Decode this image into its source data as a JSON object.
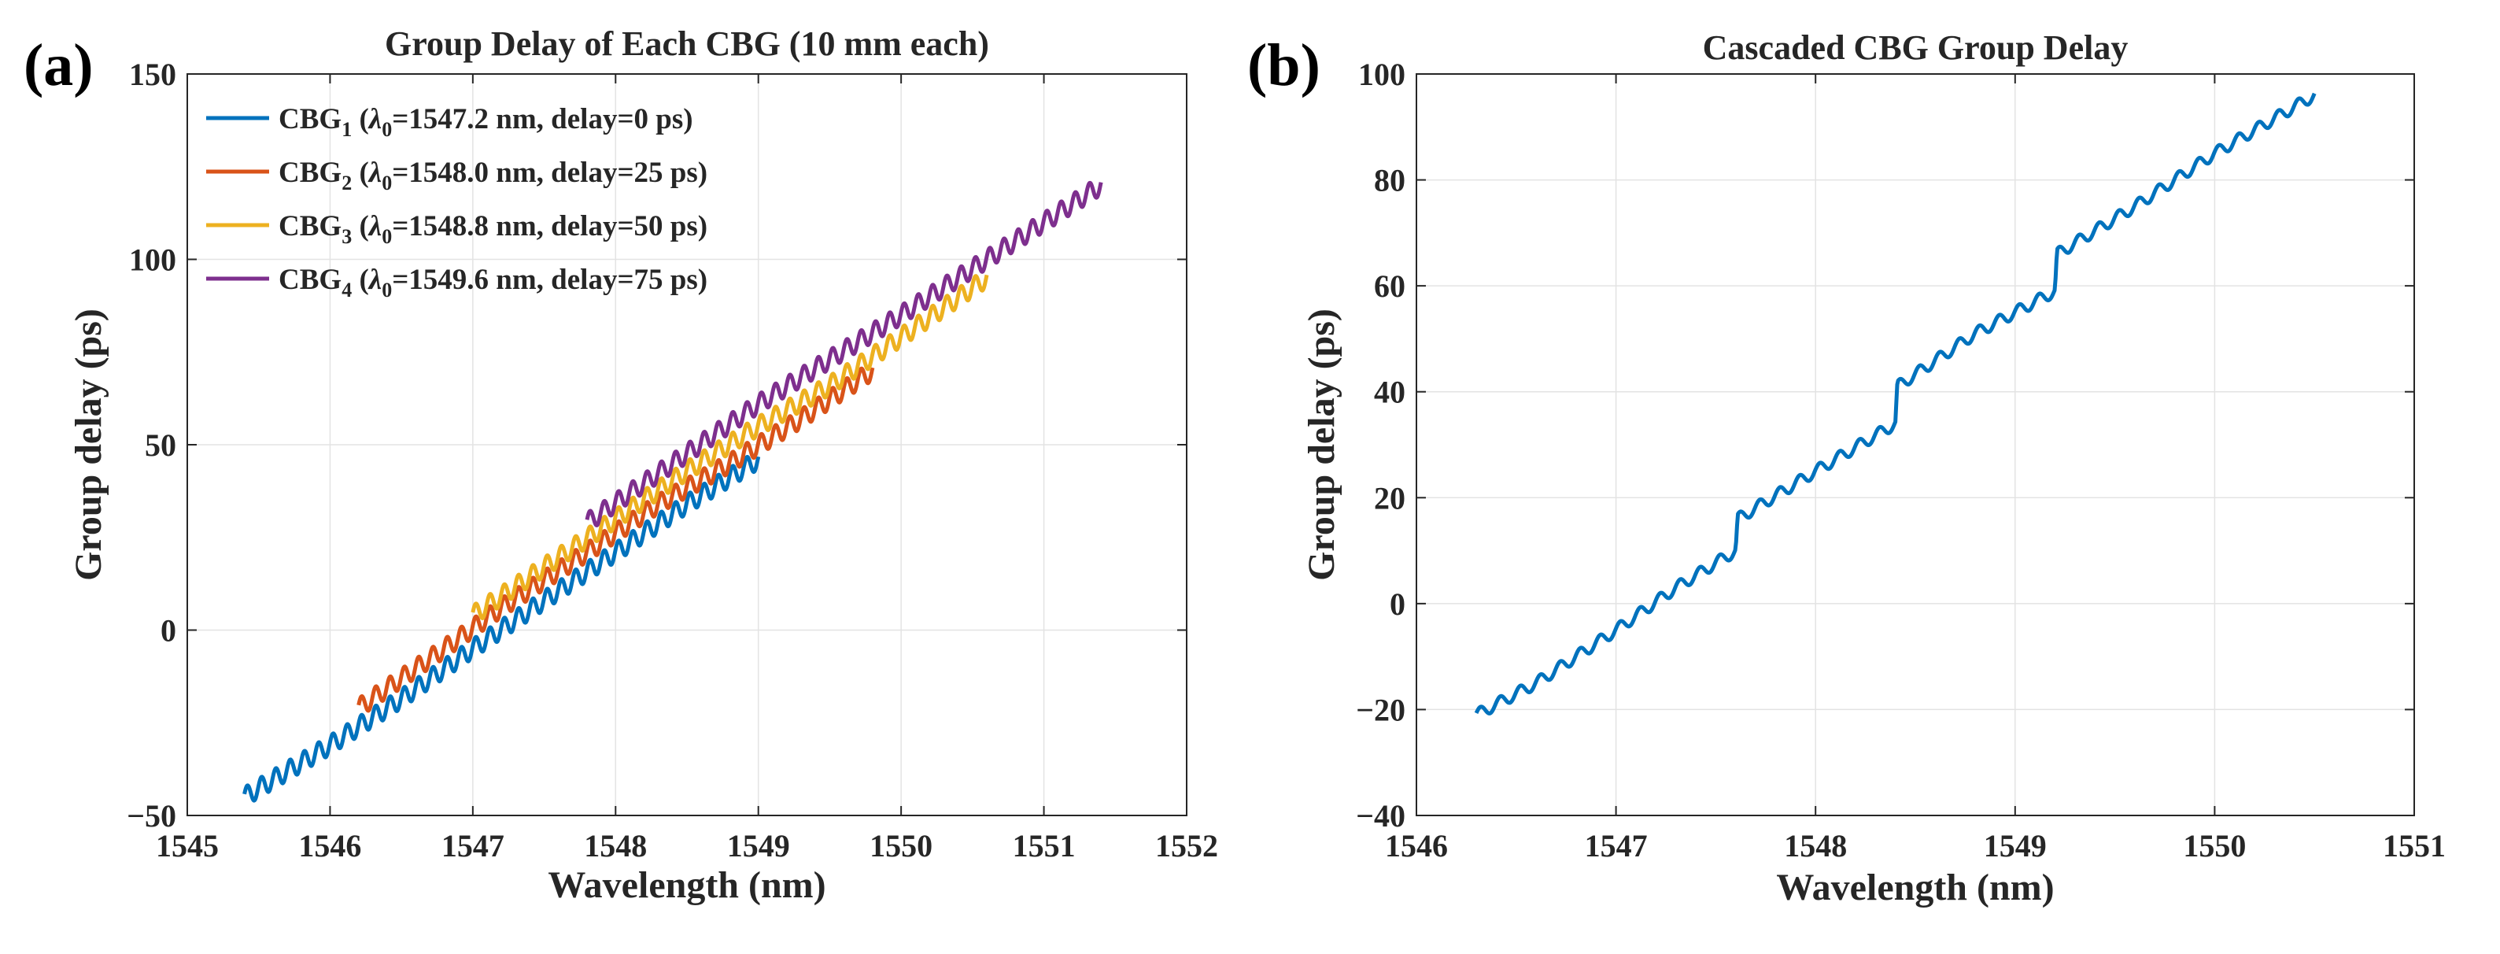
{
  "panels": [
    {
      "label": "(a)"
    },
    {
      "label": "(b)"
    }
  ],
  "chart_data": [
    {
      "type": "line",
      "title": "Group Delay of Each CBG (10 mm each)",
      "xlabel": "Wavelength (nm)",
      "ylabel": "Group delay (ps)",
      "xlim": [
        1545,
        1552
      ],
      "ylim": [
        -50,
        150
      ],
      "xticks": [
        1545,
        1546,
        1547,
        1548,
        1549,
        1550,
        1551,
        1552
      ],
      "yticks": [
        -50,
        0,
        50,
        100,
        150
      ],
      "grid": true,
      "legend_position": "top-left",
      "series": [
        {
          "name": "CBG1",
          "name_sub": "1",
          "lambda0": "1547.2",
          "delay": "0",
          "color": "#0072BD",
          "x": [
            1545.4,
            1546.0,
            1546.5,
            1547.0,
            1547.5,
            1548.0,
            1548.5,
            1549.0
          ],
          "y": [
            -45,
            -31,
            -18.5,
            -5,
            8,
            21,
            34,
            46
          ],
          "ripple_amp": 2.6,
          "ripple_period": 0.1
        },
        {
          "name": "CBG2",
          "name_sub": "2",
          "lambda0": "1548.0",
          "delay": "25",
          "color": "#D95319",
          "x": [
            1546.2,
            1546.8,
            1547.2,
            1547.8,
            1548.3,
            1548.8,
            1549.3,
            1549.8
          ],
          "y": [
            -21,
            -5,
            6,
            21,
            34,
            45,
            57,
            70
          ],
          "ripple_amp": 2.6,
          "ripple_period": 0.1
        },
        {
          "name": "CBG3",
          "name_sub": "3",
          "lambda0": "1548.8",
          "delay": "50",
          "color": "#EDB120",
          "x": [
            1547.0,
            1547.5,
            1548.0,
            1548.5,
            1549.0,
            1549.5,
            1550.0,
            1550.6
          ],
          "y": [
            4,
            17,
            30,
            43,
            55,
            66,
            79,
            95
          ],
          "ripple_amp": 2.6,
          "ripple_period": 0.1
        },
        {
          "name": "CBG4",
          "name_sub": "4",
          "lambda0": "1549.6",
          "delay": "75",
          "color": "#7E2F8E",
          "x": [
            1547.8,
            1548.4,
            1549.0,
            1549.5,
            1550.0,
            1550.6,
            1551.0,
            1551.4
          ],
          "y": [
            29,
            45,
            61,
            73,
            85,
            100,
            110,
            120
          ],
          "ripple_amp": 2.6,
          "ripple_period": 0.1
        }
      ]
    },
    {
      "type": "line",
      "title": "Cascaded CBG Group Delay",
      "xlabel": "Wavelength (nm)",
      "ylabel": "Group delay (ps)",
      "xlim": [
        1546,
        1551
      ],
      "ylim": [
        -40,
        100
      ],
      "xticks": [
        1546,
        1547,
        1548,
        1549,
        1550,
        1551
      ],
      "yticks": [
        -40,
        -20,
        0,
        20,
        40,
        60,
        80,
        100
      ],
      "grid": true,
      "series": [
        {
          "color": "#0072BD",
          "x": [
            1546.3,
            1546.6,
            1547.0,
            1547.3,
            1547.6,
            1547.61,
            1548.0,
            1548.4,
            1548.41,
            1548.8,
            1549.2,
            1549.21,
            1549.6,
            1550.0,
            1550.5
          ],
          "y": [
            -21,
            -15,
            -5,
            3,
            10,
            16,
            25,
            34,
            41,
            51,
            59,
            66,
            75,
            85,
            96
          ],
          "ripple_amp": 1.1,
          "ripple_period": 0.1
        }
      ]
    }
  ]
}
